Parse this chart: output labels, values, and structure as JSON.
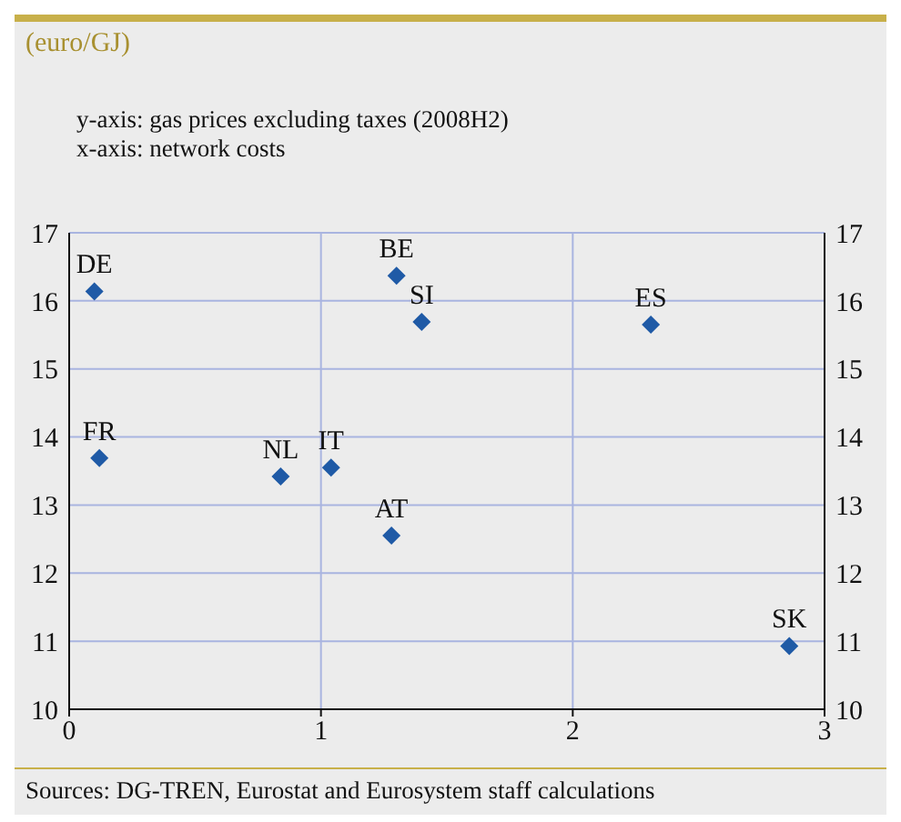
{
  "chart_data": {
    "type": "scatter",
    "title": "(euro/GJ)",
    "ylabel": "y-axis: gas prices excluding taxes (2008H2)",
    "xlabel": "x-axis: network costs",
    "annotations": [
      "Sources: DG-TREN, Eurostat and Eurosystem staff calculations"
    ],
    "series": [
      {
        "name": "DE",
        "color": "#1f5aa6",
        "x": [
          0.1
        ],
        "values": [
          16.14
        ]
      },
      {
        "name": "BE",
        "color": "#1f5aa6",
        "x": [
          1.3
        ],
        "values": [
          16.37
        ]
      },
      {
        "name": "SI",
        "color": "#1f5aa6",
        "x": [
          1.4
        ],
        "values": [
          15.69
        ]
      },
      {
        "name": "ES",
        "color": "#1f5aa6",
        "x": [
          2.31
        ],
        "values": [
          15.65
        ]
      },
      {
        "name": "FR",
        "color": "#1f5aa6",
        "x": [
          0.12
        ],
        "values": [
          13.69
        ]
      },
      {
        "name": "NL",
        "color": "#1f5aa6",
        "x": [
          0.84
        ],
        "values": [
          13.42
        ]
      },
      {
        "name": "IT",
        "color": "#1f5aa6",
        "x": [
          1.04
        ],
        "values": [
          13.55
        ]
      },
      {
        "name": "AT",
        "color": "#1f5aa6",
        "x": [
          1.28
        ],
        "values": [
          12.55
        ]
      },
      {
        "name": "SK",
        "color": "#1f5aa6",
        "x": [
          2.86
        ],
        "values": [
          10.93
        ]
      }
    ],
    "xlim": [
      0,
      3
    ],
    "xticks": [
      0,
      1,
      2,
      3
    ],
    "ylim": [
      10,
      17
    ],
    "yticks": [
      10,
      11,
      12,
      13,
      14,
      15,
      16,
      17
    ],
    "y2lim": [
      10,
      17
    ],
    "y2ticks": [
      10,
      11,
      12,
      13,
      14,
      15,
      16,
      17
    ],
    "grid": true,
    "marker": "diamond",
    "legend": false
  }
}
